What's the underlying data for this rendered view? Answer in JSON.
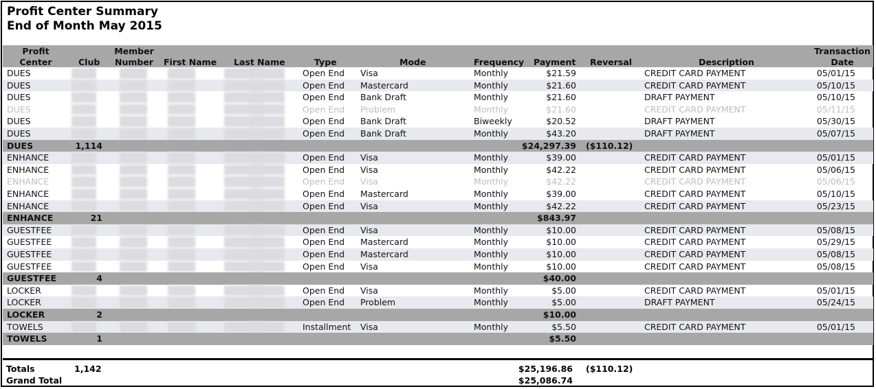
{
  "report": {
    "title": "Profit Center Summary",
    "subtitle": "End of Month May 2015"
  },
  "headers": {
    "profit_center_1": "Profit",
    "profit_center_2": "Center",
    "club": "Club",
    "member_number_1": "Member",
    "member_number_2": "Number",
    "first_name": "First Name",
    "last_name": "Last Name",
    "type": "Type",
    "mode": "Mode",
    "frequency": "Frequency",
    "payment": "Payment",
    "reversal": "Reversal",
    "description": "Description",
    "transaction_date_1": "Transaction",
    "transaction_date_2": "Date"
  },
  "rows": [
    {
      "kind": "detail",
      "center": "DUES",
      "type": "Open End",
      "mode": "Visa",
      "frequency": "Monthly",
      "payment": "$21.59",
      "description": "CREDIT CARD PAYMENT",
      "date": "05/01/15"
    },
    {
      "kind": "detail",
      "center": "DUES",
      "type": "Open End",
      "mode": "Mastercard",
      "frequency": "Monthly",
      "payment": "$21.60",
      "description": "CREDIT CARD PAYMENT",
      "date": "05/10/15"
    },
    {
      "kind": "detail",
      "center": "DUES",
      "type": "Open End",
      "mode": "Bank Draft",
      "frequency": "Monthly",
      "payment": "$21.60",
      "description": "DRAFT PAYMENT",
      "date": "05/10/15"
    },
    {
      "kind": "faded",
      "center": "DUES",
      "type": "Open End",
      "mode": "Problem",
      "frequency": "Monthly",
      "payment": "$21.60",
      "description": "CREDIT CARD PAYMENT",
      "date": "05/11/15"
    },
    {
      "kind": "detail",
      "center": "DUES",
      "type": "Open End",
      "mode": "Bank Draft",
      "frequency": "Biweekly",
      "payment": "$20.52",
      "description": "DRAFT PAYMENT",
      "date": "05/30/15"
    },
    {
      "kind": "detail",
      "center": "DUES",
      "type": "Open End",
      "mode": "Bank Draft",
      "frequency": "Monthly",
      "payment": "$43.20",
      "description": "DRAFT PAYMENT",
      "date": "05/07/15"
    },
    {
      "kind": "subtotal",
      "center": "DUES",
      "club": "1,114",
      "payment": "$24,297.39",
      "reversal": "($110.12)"
    },
    {
      "kind": "detail",
      "center": "ENHANCE",
      "type": "Open End",
      "mode": "Visa",
      "frequency": "Monthly",
      "payment": "$39.00",
      "description": "CREDIT CARD PAYMENT",
      "date": "05/01/15"
    },
    {
      "kind": "detail",
      "center": "ENHANCE",
      "type": "Open End",
      "mode": "Visa",
      "frequency": "Monthly",
      "payment": "$42.22",
      "description": "CREDIT CARD PAYMENT",
      "date": "05/06/15"
    },
    {
      "kind": "faded",
      "center": "ENHANCE",
      "type": "Open End",
      "mode": "Visa",
      "frequency": "Monthly",
      "payment": "$42.22",
      "description": "CREDIT CARD PAYMENT",
      "date": "05/06/15"
    },
    {
      "kind": "detail",
      "center": "ENHANCE",
      "type": "Open End",
      "mode": "Mastercard",
      "frequency": "Monthly",
      "payment": "$39.00",
      "description": "CREDIT CARD PAYMENT",
      "date": "05/10/15"
    },
    {
      "kind": "detail",
      "center": "ENHANCE",
      "type": "Open End",
      "mode": "Visa",
      "frequency": "Monthly",
      "payment": "$42.22",
      "description": "CREDIT CARD PAYMENT",
      "date": "05/23/15"
    },
    {
      "kind": "subtotal",
      "center": "ENHANCE",
      "club": "21",
      "payment": "$843.97",
      "reversal": ""
    },
    {
      "kind": "detail",
      "center": "GUESTFEE",
      "type": "Open End",
      "mode": "Visa",
      "frequency": "Monthly",
      "payment": "$10.00",
      "description": "CREDIT CARD PAYMENT",
      "date": "05/08/15"
    },
    {
      "kind": "detail",
      "center": "GUESTFEE",
      "type": "Open End",
      "mode": "Mastercard",
      "frequency": "Monthly",
      "payment": "$10.00",
      "description": "CREDIT CARD PAYMENT",
      "date": "05/29/15"
    },
    {
      "kind": "detail",
      "center": "GUESTFEE",
      "type": "Open End",
      "mode": "Mastercard",
      "frequency": "Monthly",
      "payment": "$10.00",
      "description": "CREDIT CARD PAYMENT",
      "date": "05/08/15"
    },
    {
      "kind": "detail",
      "center": "GUESTFEE",
      "type": "Open End",
      "mode": "Visa",
      "frequency": "Monthly",
      "payment": "$10.00",
      "description": "CREDIT CARD PAYMENT",
      "date": "05/08/15"
    },
    {
      "kind": "subtotal",
      "center": "GUESTFEE",
      "club": "4",
      "payment": "$40.00",
      "reversal": ""
    },
    {
      "kind": "detail",
      "center": "LOCKER",
      "type": "Open End",
      "mode": "Visa",
      "frequency": "Monthly",
      "payment": "$5.00",
      "description": "CREDIT CARD PAYMENT",
      "date": "05/01/15"
    },
    {
      "kind": "detail",
      "center": "LOCKER",
      "type": "Open End",
      "mode": "Problem",
      "frequency": "Monthly",
      "payment": "$5.00",
      "description": "DRAFT PAYMENT",
      "date": "05/24/15"
    },
    {
      "kind": "subtotal",
      "center": "LOCKER",
      "club": "2",
      "payment": "$10.00",
      "reversal": ""
    },
    {
      "kind": "detail",
      "center": "TOWELS",
      "type": "Installment",
      "mode": "Visa",
      "frequency": "Monthly",
      "payment": "$5.50",
      "description": "CREDIT CARD PAYMENT",
      "date": "05/01/15"
    },
    {
      "kind": "subtotal",
      "center": "TOWELS",
      "club": "1",
      "payment": "$5.50",
      "reversal": ""
    }
  ],
  "totals": {
    "totals_label": "Totals",
    "club": "1,142",
    "payment": "$25,196.86",
    "reversal": "($110.12)",
    "grand_total_label": "Grand Total",
    "grand_total": "$25,086.74"
  }
}
